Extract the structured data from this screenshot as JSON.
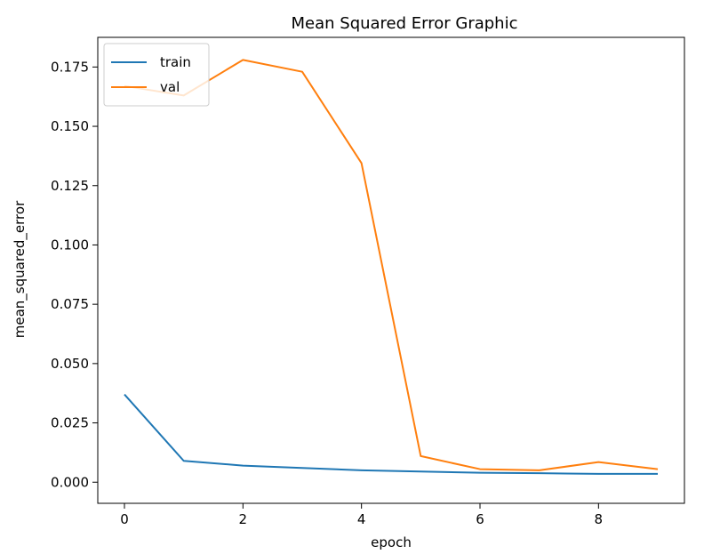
{
  "chart_data": {
    "type": "line",
    "title": "Mean Squared Error Graphic",
    "xlabel": "epoch",
    "ylabel": "mean_squared_error",
    "x": [
      0,
      1,
      2,
      3,
      4,
      5,
      6,
      7,
      8,
      9
    ],
    "xlim": [
      -0.45,
      9.45
    ],
    "ylim": [
      -0.0089,
      0.1875
    ],
    "x_ticks": [
      0,
      2,
      4,
      6,
      8
    ],
    "x_tick_labels": [
      "0",
      "2",
      "4",
      "6",
      "8"
    ],
    "y_ticks": [
      0.0,
      0.025,
      0.05,
      0.075,
      0.1,
      0.125,
      0.15,
      0.175
    ],
    "y_tick_labels": [
      "0.000",
      "0.025",
      "0.050",
      "0.075",
      "0.100",
      "0.125",
      "0.150",
      "0.175"
    ],
    "grid": false,
    "legend_position": "top-left",
    "series": [
      {
        "name": "train",
        "color": "#1f77b4",
        "values": [
          0.037,
          0.009,
          0.007,
          0.006,
          0.005,
          0.0045,
          0.004,
          0.0038,
          0.0035,
          0.0035
        ]
      },
      {
        "name": "val",
        "color": "#ff7f0e",
        "values": [
          0.167,
          0.163,
          0.178,
          0.173,
          0.1345,
          0.011,
          0.0055,
          0.005,
          0.0085,
          0.0055
        ]
      }
    ]
  }
}
